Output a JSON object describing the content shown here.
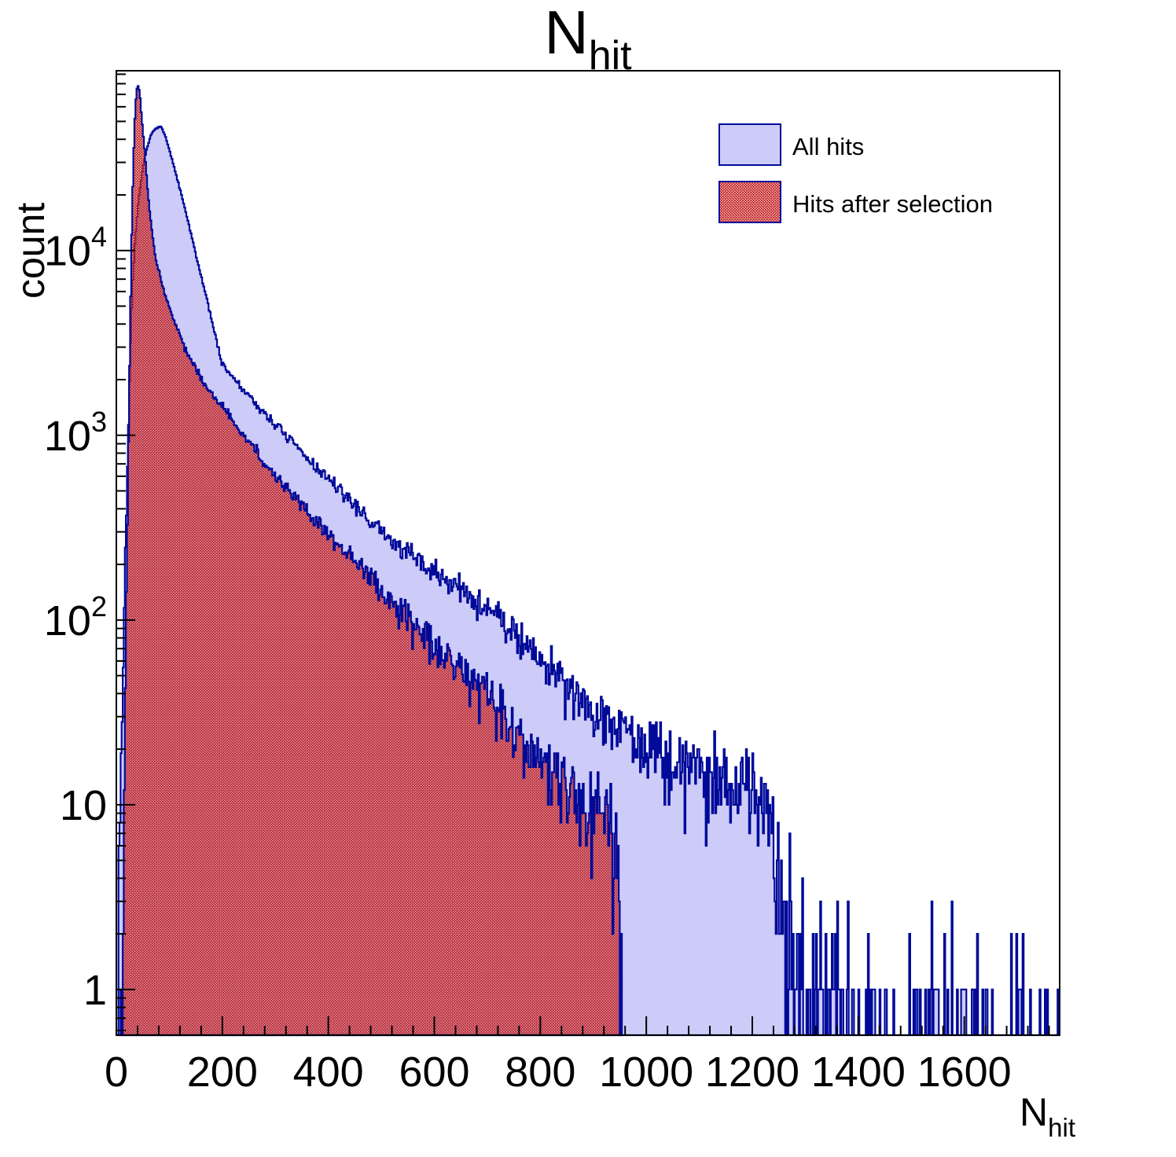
{
  "title": {
    "main": "N",
    "sub": "hit"
  },
  "axes": {
    "x": {
      "title": {
        "main": "N",
        "sub": "hit"
      },
      "min": 0,
      "max": 1780,
      "major_step": 200,
      "minor_step": 40,
      "tick_labels": [
        "0",
        "200",
        "400",
        "600",
        "800",
        "1000",
        "1200",
        "1400",
        "1600"
      ],
      "tick_values": [
        0,
        200,
        400,
        600,
        800,
        1000,
        1200,
        1400,
        1600
      ]
    },
    "y": {
      "title": "count",
      "scale": "log",
      "min": 0.566,
      "max": 94000,
      "major_ticks": [
        {
          "value": 1,
          "base": "1",
          "exp": ""
        },
        {
          "value": 10,
          "base": "10",
          "exp": ""
        },
        {
          "value": 100,
          "base": "10",
          "exp": "2"
        },
        {
          "value": 1000,
          "base": "10",
          "exp": "3"
        },
        {
          "value": 10000,
          "base": "10",
          "exp": "4"
        }
      ]
    }
  },
  "legend": {
    "entries": [
      {
        "label": "All hits",
        "swatch": "solid-lavender"
      },
      {
        "label": "Hits after selection",
        "swatch": "red-hatch"
      }
    ]
  },
  "colors": {
    "line": "#000a99",
    "blue_fill": "#cdccf8",
    "red_hatch": "#c62828",
    "frame": "#000000",
    "text": "#000000",
    "background": "#ffffff"
  },
  "chart_data": {
    "type": "bar",
    "subtype": "overlaid-step-histograms-logy",
    "title": "N_hit",
    "xlabel": "N_hit",
    "ylabel": "count",
    "xlim": [
      0,
      1780
    ],
    "ylim": [
      0.566,
      94000
    ],
    "yscale": "log",
    "grid": false,
    "legend_position": "top-right",
    "bin_width": 2,
    "noise_seed": 7,
    "series": [
      {
        "name": "All hits",
        "style": "fill",
        "peak": {
          "x": 84,
          "value": 47000
        },
        "anchors_x": [
          0,
          3,
          6,
          10,
          14,
          18,
          22,
          26,
          30,
          36,
          42,
          50,
          58,
          66,
          74,
          84,
          92,
          100,
          110,
          120,
          135,
          150,
          170,
          200,
          230,
          260,
          300,
          350,
          400,
          450,
          500,
          550,
          600,
          650,
          700,
          750,
          800,
          850,
          900,
          950,
          1000,
          1050,
          1100,
          1150,
          1200,
          1235,
          1255,
          1275,
          1300,
          1350,
          1400,
          1500,
          1600,
          1700,
          1780
        ],
        "anchors_v": [
          0.7,
          2,
          6,
          25,
          90,
          300,
          900,
          2500,
          6000,
          12000,
          19000,
          28000,
          36000,
          42500,
          46000,
          47000,
          42000,
          35000,
          27500,
          21500,
          14500,
          9500,
          5600,
          2400,
          1900,
          1500,
          1150,
          800,
          580,
          420,
          300,
          230,
          180,
          145,
          115,
          90,
          62,
          45,
          33,
          27,
          22,
          18,
          16,
          14,
          12,
          10,
          4,
          2,
          1.3,
          0.8,
          0.45,
          0.4,
          0.4,
          0.35,
          0.35
        ]
      },
      {
        "name": "Hits after selection",
        "style": "hatch",
        "peak": {
          "x": 40,
          "value": 80000
        },
        "cutoff_x": 953,
        "anchors_x": [
          8,
          12,
          16,
          20,
          24,
          28,
          32,
          36,
          40,
          44,
          48,
          54,
          60,
          66,
          74,
          84,
          95,
          110,
          130,
          150,
          175,
          200,
          230,
          260,
          300,
          350,
          400,
          450,
          500,
          550,
          600,
          650,
          700,
          750,
          800,
          850,
          900,
          930,
          945,
          953
        ],
        "anchors_v": [
          0.5,
          3,
          25,
          200,
          1500,
          9000,
          30000,
          62000,
          80000,
          72000,
          52000,
          33000,
          20000,
          13500,
          9000,
          7000,
          5400,
          4100,
          2900,
          2300,
          1750,
          1450,
          1100,
          850,
          600,
          420,
          290,
          205,
          145,
          105,
          75,
          55,
          40,
          28,
          17,
          13,
          10.5,
          9,
          4,
          1
        ]
      }
    ]
  }
}
